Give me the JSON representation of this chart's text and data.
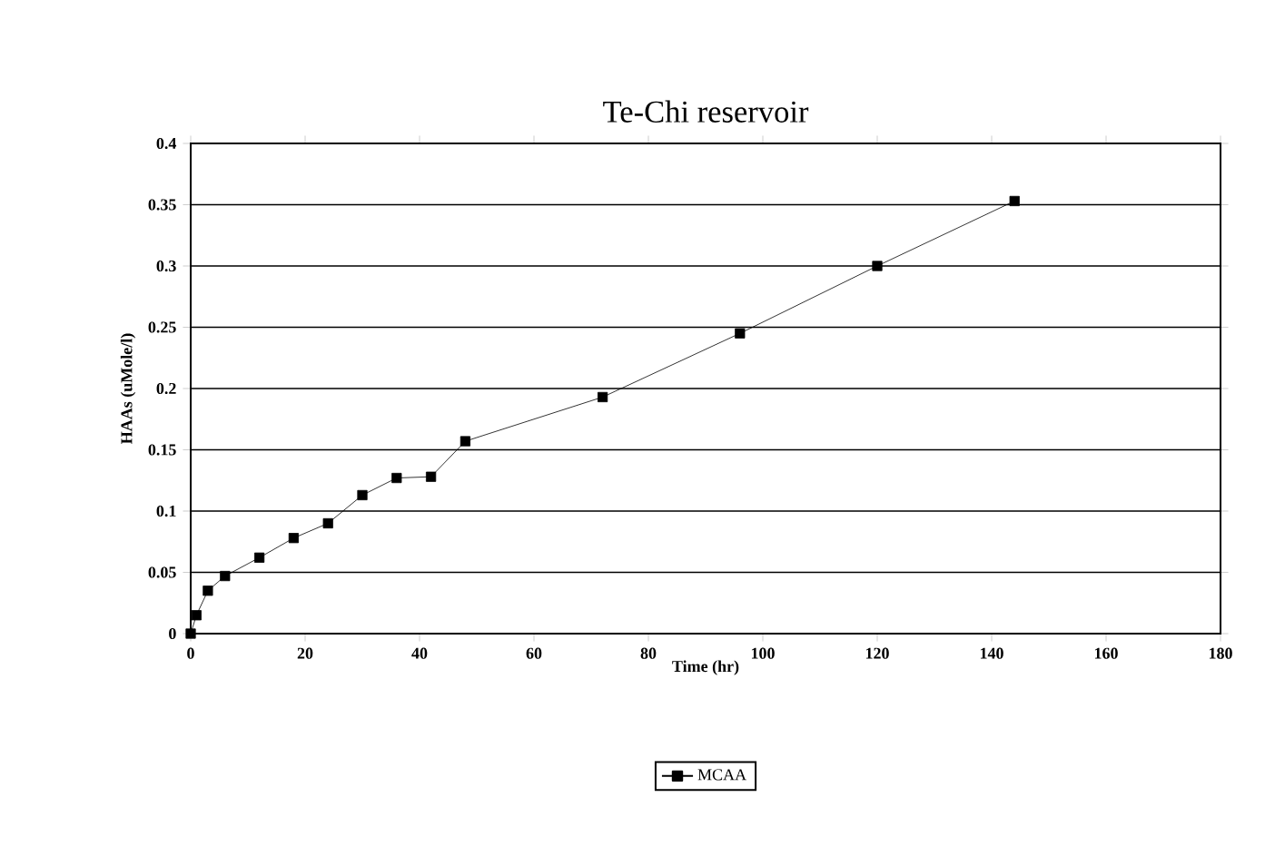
{
  "chart_data": {
    "type": "line",
    "title": "Te-Chi reservoir",
    "xlabel": "Time (hr)",
    "ylabel": "HAAs (uMole/l)",
    "x": [
      0,
      1,
      3,
      6,
      12,
      18,
      24,
      30,
      36,
      42,
      48,
      72,
      96,
      120,
      144
    ],
    "series": [
      {
        "name": "MCAA",
        "color": "#000000",
        "values": [
          0,
          0.015,
          0.035,
          0.047,
          0.062,
          0.078,
          0.09,
          0.113,
          0.127,
          0.128,
          0.157,
          0.193,
          0.245,
          0.3,
          0.353
        ]
      }
    ],
    "xlim": [
      0,
      180
    ],
    "xticks": [
      0,
      20,
      40,
      60,
      80,
      100,
      120,
      140,
      160,
      180
    ],
    "ylim": [
      0,
      0.4
    ],
    "yticks": [
      0,
      0.05,
      0.1,
      0.15,
      0.2,
      0.25,
      0.3,
      0.35,
      0.4
    ],
    "grid": "y",
    "legend": "bottom",
    "marker": "square",
    "line_style": "solid"
  }
}
